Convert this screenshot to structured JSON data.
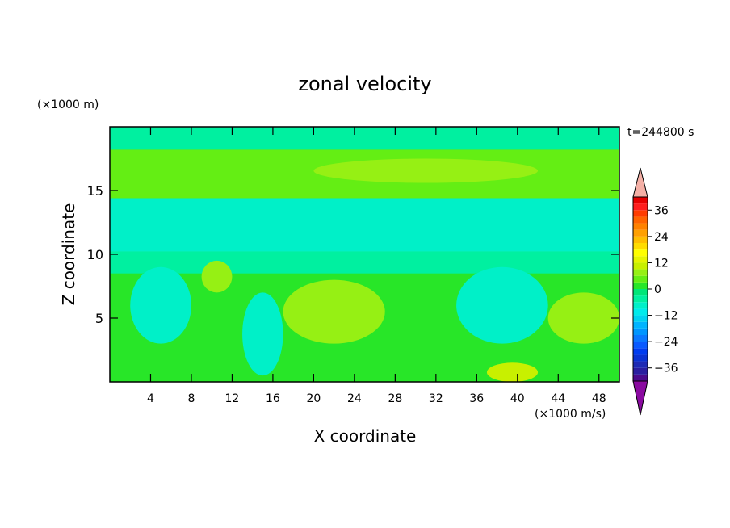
{
  "chart_data": {
    "type": "heatmap",
    "title": "zonal velocity",
    "xlabel": "X coordinate",
    "ylabel": "Z coordinate",
    "x_unit": "(×1000 m)",
    "colorbar_unit": "(×1000 m/s)",
    "time_label": "t=244800 s",
    "xlim": [
      0,
      50
    ],
    "ylim": [
      0,
      20
    ],
    "x_ticks": [
      4,
      8,
      12,
      16,
      20,
      24,
      28,
      32,
      36,
      40,
      44,
      48
    ],
    "x_tick_labels": [
      "4",
      "8",
      "12",
      "16",
      "20",
      "24",
      "28",
      "32",
      "36",
      "40",
      "44",
      "48"
    ],
    "y_ticks": [
      5,
      10,
      15
    ],
    "y_tick_labels": [
      "5",
      "10",
      "15"
    ],
    "colorbar": {
      "levels": [
        -42,
        -39,
        -36,
        -33,
        -30,
        -27,
        -24,
        -21,
        -18,
        -15,
        -12,
        -9,
        -6,
        -3,
        0,
        3,
        6,
        9,
        12,
        15,
        18,
        21,
        24,
        27,
        30,
        33,
        36,
        39,
        42
      ],
      "tick_values": [
        36,
        24,
        12,
        0,
        -12,
        -24,
        -36
      ],
      "tick_labels": [
        "36",
        "24",
        "12",
        "0",
        "−12",
        "−24",
        "−36"
      ],
      "colors": [
        "#4b0a8c",
        "#2a1ea0",
        "#1e2ab4",
        "#0a32d2",
        "#003cf0",
        "#0a5aff",
        "#0a78ff",
        "#0096ff",
        "#00b4ff",
        "#00d2f0",
        "#00ebeb",
        "#00f0c8",
        "#00f0a0",
        "#00e678",
        "#28e628",
        "#64ee14",
        "#96f014",
        "#c8f000",
        "#e6f500",
        "#ffff00",
        "#ffdc00",
        "#ffbe00",
        "#ffa000",
        "#ff8200",
        "#ff6400",
        "#ff3c00",
        "#ff1e1e",
        "#e60000"
      ],
      "over_color": "#f4b0a6",
      "under_color": "#8a0aa0"
    },
    "field_regions": [
      {
        "level": 0,
        "x": [
          0,
          50
        ],
        "z": [
          0,
          20
        ]
      },
      {
        "level": -6,
        "x": [
          0,
          50
        ],
        "z": [
          18.2,
          20
        ]
      },
      {
        "level": 3,
        "x": [
          0,
          50
        ],
        "z": [
          14.4,
          18.2
        ]
      },
      {
        "level": -9,
        "x": [
          0,
          50
        ],
        "z": [
          10.2,
          14.4
        ]
      },
      {
        "level": -6,
        "x": [
          0,
          50
        ],
        "z": [
          8.5,
          10.2
        ]
      },
      {
        "level": -9,
        "x": [
          2,
          8
        ],
        "z": [
          3,
          9
        ]
      },
      {
        "level": -9,
        "x": [
          34,
          43
        ],
        "z": [
          3,
          9
        ]
      },
      {
        "level": -9,
        "x": [
          13,
          17
        ],
        "z": [
          0.5,
          7
        ]
      },
      {
        "level": 6,
        "x": [
          17,
          27
        ],
        "z": [
          3,
          8
        ]
      },
      {
        "level": 6,
        "x": [
          9,
          12
        ],
        "z": [
          7,
          9.5
        ]
      },
      {
        "level": 6,
        "x": [
          43,
          50
        ],
        "z": [
          3,
          7
        ]
      },
      {
        "level": 9,
        "x": [
          37,
          42
        ],
        "z": [
          0,
          1.5
        ]
      },
      {
        "level": 6,
        "x": [
          20,
          42
        ],
        "z": [
          15.6,
          17.5
        ]
      }
    ]
  }
}
